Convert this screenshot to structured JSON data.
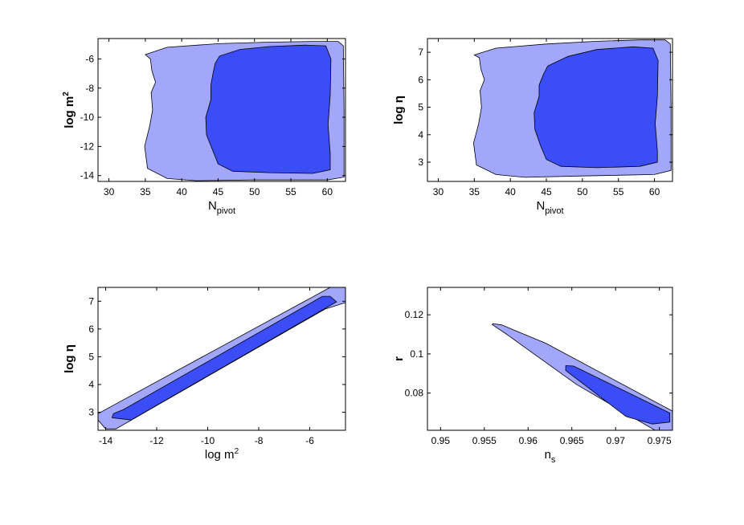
{
  "colors": {
    "outer": "#a2a7fc",
    "inner": "#3b4df7",
    "stroke": "#000000"
  },
  "chart_data": [
    {
      "type": "contour",
      "xlabel": "N",
      "xlabel_sub": "pivot",
      "ylabel": "log m",
      "ylabel_sup": "2",
      "xlim": [
        28.5,
        62.5
      ],
      "ylim": [
        -14.4,
        -4.6
      ],
      "xticks": [
        30,
        35,
        40,
        45,
        50,
        55,
        60
      ],
      "yticks": [
        -14,
        -12,
        -10,
        -8,
        -6
      ],
      "contours": {
        "outer": [
          [
            35.0,
            -5.7
          ],
          [
            38,
            -5.2
          ],
          [
            45,
            -4.95
          ],
          [
            52,
            -4.85
          ],
          [
            58,
            -4.8
          ],
          [
            61.5,
            -4.8
          ],
          [
            62.2,
            -5.1
          ],
          [
            62.3,
            -9.5
          ],
          [
            62.3,
            -14.1
          ],
          [
            60,
            -14.3
          ],
          [
            50,
            -14.3
          ],
          [
            42,
            -14.35
          ],
          [
            38,
            -14.2
          ],
          [
            35.3,
            -13.5
          ],
          [
            34.9,
            -12.0
          ],
          [
            35.6,
            -10.6
          ],
          [
            36.0,
            -9.5
          ],
          [
            35.8,
            -8.3
          ],
          [
            36.4,
            -7.6
          ],
          [
            35.9,
            -6.8
          ],
          [
            35.7,
            -6.0
          ]
        ],
        "inner": [
          [
            44.6,
            -6.3
          ],
          [
            45.2,
            -5.8
          ],
          [
            48,
            -5.35
          ],
          [
            52,
            -5.15
          ],
          [
            57,
            -5.05
          ],
          [
            59.8,
            -5.1
          ],
          [
            60.5,
            -6.0
          ],
          [
            60.4,
            -8.5
          ],
          [
            60.1,
            -10.5
          ],
          [
            60.4,
            -12.5
          ],
          [
            60.4,
            -13.6
          ],
          [
            58,
            -13.85
          ],
          [
            52,
            -13.8
          ],
          [
            47,
            -13.7
          ],
          [
            45.0,
            -13.2
          ],
          [
            44.2,
            -12.2
          ],
          [
            43.4,
            -11.2
          ],
          [
            43.3,
            -10.0
          ],
          [
            44.0,
            -8.8
          ],
          [
            44.0,
            -7.8
          ],
          [
            44.3,
            -7.0
          ]
        ]
      }
    },
    {
      "type": "contour",
      "xlabel": "N",
      "xlabel_sub": "pivot",
      "ylabel": "log η",
      "ylabel_sup": "",
      "xlim": [
        28.5,
        62.5
      ],
      "ylim": [
        2.3,
        7.5
      ],
      "xticks": [
        30,
        35,
        40,
        45,
        50,
        55,
        60
      ],
      "yticks": [
        3,
        4,
        5,
        6,
        7
      ],
      "contours": {
        "outer": [
          [
            35.0,
            6.9
          ],
          [
            38,
            7.15
          ],
          [
            45,
            7.3
          ],
          [
            52,
            7.4
          ],
          [
            58,
            7.45
          ],
          [
            61.5,
            7.45
          ],
          [
            62.2,
            7.3
          ],
          [
            62.3,
            5.0
          ],
          [
            62.3,
            2.7
          ],
          [
            60,
            2.55
          ],
          [
            50,
            2.5
          ],
          [
            42,
            2.45
          ],
          [
            38,
            2.55
          ],
          [
            35.3,
            2.9
          ],
          [
            34.9,
            3.7
          ],
          [
            35.6,
            4.4
          ],
          [
            36.0,
            5.0
          ],
          [
            35.8,
            5.6
          ],
          [
            36.4,
            6.0
          ],
          [
            35.9,
            6.4
          ],
          [
            35.7,
            6.8
          ]
        ],
        "inner": [
          [
            44.6,
            6.2
          ],
          [
            45.2,
            6.5
          ],
          [
            48,
            6.85
          ],
          [
            52,
            7.1
          ],
          [
            57,
            7.2
          ],
          [
            59.8,
            7.15
          ],
          [
            60.5,
            6.7
          ],
          [
            60.4,
            5.4
          ],
          [
            60.1,
            4.4
          ],
          [
            60.4,
            3.4
          ],
          [
            60.4,
            3.0
          ],
          [
            58,
            2.85
          ],
          [
            52,
            2.8
          ],
          [
            47,
            2.85
          ],
          [
            45.0,
            3.1
          ],
          [
            44.2,
            3.6
          ],
          [
            43.4,
            4.2
          ],
          [
            43.3,
            4.8
          ],
          [
            44.0,
            5.4
          ],
          [
            44.0,
            5.8
          ],
          [
            44.3,
            6.0
          ]
        ]
      }
    },
    {
      "type": "contour",
      "xlabel": "log m",
      "xlabel_sup": "2",
      "ylabel": "log η",
      "ylabel_sup": "",
      "xlim": [
        -14.3,
        -4.6
      ],
      "ylim": [
        2.35,
        7.5
      ],
      "xticks": [
        -14,
        -12,
        -10,
        -8,
        -6
      ],
      "yticks": [
        3,
        4,
        5,
        6,
        7
      ],
      "contours": {
        "outer": [
          [
            -14.3,
            2.72
          ],
          [
            -14.3,
            2.95
          ],
          [
            -13.6,
            3.3
          ],
          [
            -5.2,
            7.5
          ],
          [
            -4.6,
            7.5
          ],
          [
            -4.6,
            6.95
          ],
          [
            -5.4,
            6.72
          ],
          [
            -13.6,
            2.4
          ],
          [
            -14.0,
            2.4
          ]
        ],
        "inner": [
          [
            -13.75,
            2.8
          ],
          [
            -13.7,
            2.95
          ],
          [
            -13.3,
            3.1
          ],
          [
            -5.5,
            7.18
          ],
          [
            -5.2,
            7.18
          ],
          [
            -4.95,
            6.98
          ],
          [
            -13.0,
            2.72
          ]
        ]
      }
    },
    {
      "type": "contour",
      "xlabel": "n",
      "xlabel_sub": "s",
      "ylabel": "r",
      "ylabel_sup": "",
      "xlim": [
        0.9485,
        0.9765
      ],
      "ylim": [
        0.061,
        0.134
      ],
      "xticks": [
        0.95,
        0.955,
        0.96,
        0.965,
        0.97,
        0.975
      ],
      "yticks": [
        0.08,
        0.1,
        0.12
      ],
      "contours": {
        "outer": [
          [
            0.956,
            0.1155
          ],
          [
            0.957,
            0.1148
          ],
          [
            0.962,
            0.1055
          ],
          [
            0.9765,
            0.0708
          ],
          [
            0.9765,
            0.061
          ],
          [
            0.9745,
            0.061
          ],
          [
            0.9655,
            0.0845
          ],
          [
            0.9575,
            0.1102
          ],
          [
            0.9559,
            0.115
          ]
        ],
        "inner": [
          [
            0.9643,
            0.094
          ],
          [
            0.9652,
            0.0938
          ],
          [
            0.9762,
            0.0698
          ],
          [
            0.9762,
            0.0652
          ],
          [
            0.9742,
            0.0642
          ],
          [
            0.9712,
            0.068
          ],
          [
            0.9643,
            0.0915
          ]
        ]
      }
    }
  ]
}
